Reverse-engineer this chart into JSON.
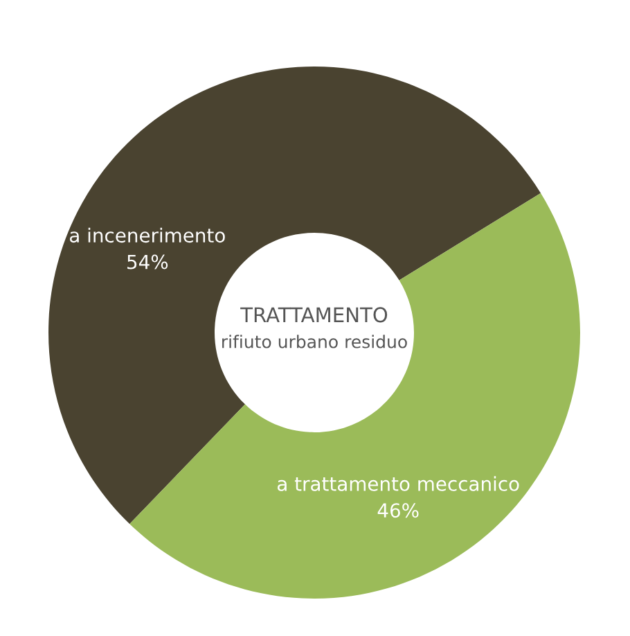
{
  "chart_data": {
    "type": "donut",
    "title": "TRATTAMENTO",
    "subtitle": "rifiuto urbano residuo",
    "categories": [
      "a incenerimento",
      "a trattamento meccanico"
    ],
    "values": [
      54,
      46
    ],
    "colors": [
      "#4a4330",
      "#9bbb59"
    ],
    "value_labels": [
      "54%",
      "46%"
    ],
    "legend": false
  }
}
